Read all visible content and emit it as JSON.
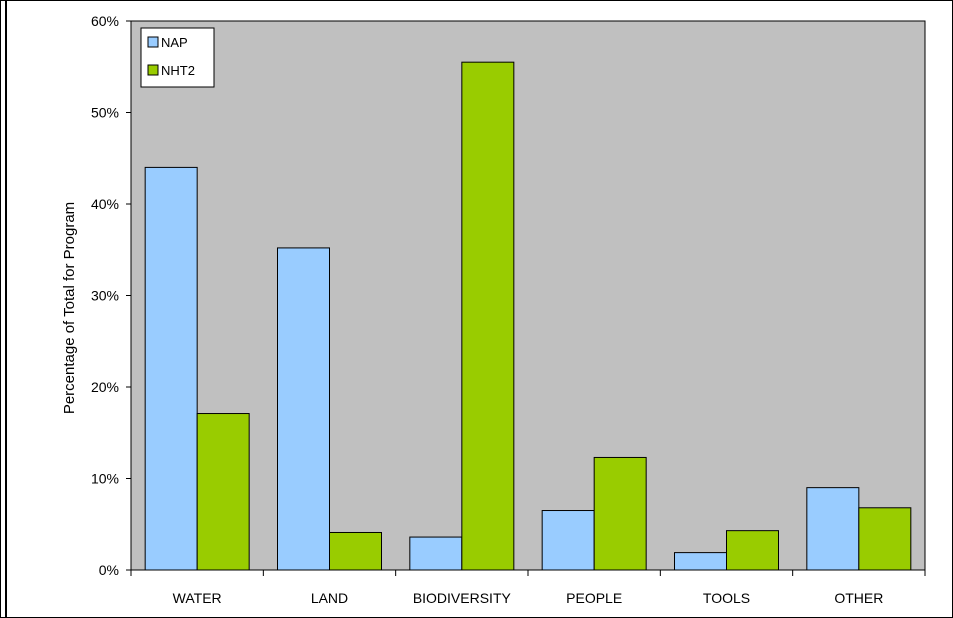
{
  "chart_data": {
    "type": "bar",
    "categories": [
      "WATER",
      "LAND",
      "BIODIVERSITY",
      "PEOPLE",
      "TOOLS",
      "OTHER"
    ],
    "series": [
      {
        "name": "NAP",
        "values": [
          44.0,
          35.2,
          3.6,
          6.5,
          1.9,
          9.0
        ],
        "color": "#99CCFF"
      },
      {
        "name": "NHT2",
        "values": [
          17.1,
          4.1,
          55.5,
          12.3,
          4.3,
          6.8
        ],
        "color": "#99CC00"
      }
    ],
    "ylabel": "Percentage of Total for Program",
    "ylim": [
      0,
      60
    ],
    "yticks": [
      "0%",
      "10%",
      "20%",
      "30%",
      "40%",
      "50%",
      "60%"
    ],
    "grid": false,
    "legend": "top-left",
    "plot_background": "#C0C0C0"
  }
}
